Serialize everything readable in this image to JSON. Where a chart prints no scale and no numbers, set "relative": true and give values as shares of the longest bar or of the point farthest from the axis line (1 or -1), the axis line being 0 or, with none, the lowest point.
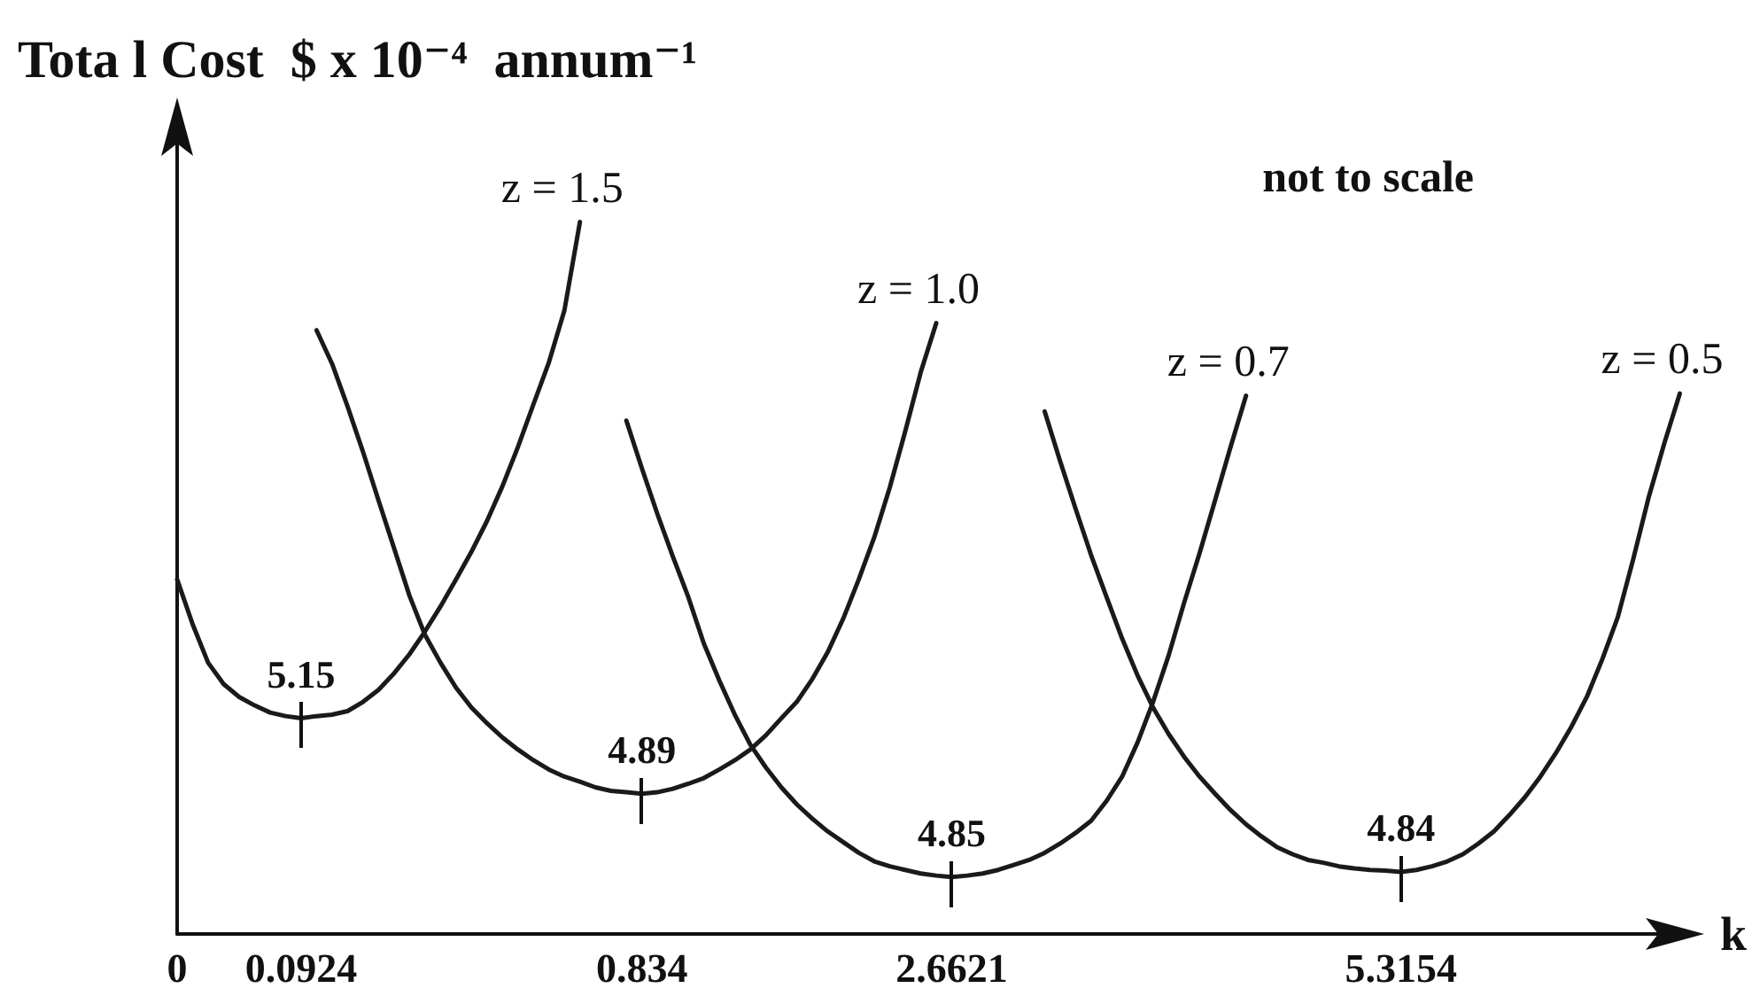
{
  "chart_data": {
    "type": "line",
    "relative": true,
    "ylabel": "Tota l Cost  $ x 10⁻⁴  annum⁻¹",
    "xlabel": "k",
    "grid": false,
    "marker": "none",
    "categories": [
      "0",
      null,
      null,
      null,
      null,
      null,
      null,
      null,
      "0.0924",
      null,
      null,
      null,
      null,
      null,
      null,
      null,
      null,
      null,
      null,
      null,
      null,
      null,
      null,
      null,
      null,
      null,
      null,
      null,
      null,
      null,
      "0.834",
      null,
      null,
      null,
      null,
      null,
      null,
      null,
      null,
      null,
      null,
      null,
      null,
      null,
      null,
      null,
      null,
      null,
      null,
      null,
      "2.6621",
      null,
      null,
      null,
      null,
      null,
      null,
      null,
      null,
      null,
      null,
      null,
      null,
      null,
      null,
      null,
      null,
      null,
      null,
      null,
      null,
      null,
      null,
      null,
      null,
      null,
      null,
      null,
      null,
      "5.3154",
      null,
      null,
      null,
      null,
      null,
      null,
      null,
      null,
      null,
      null,
      null,
      null,
      null,
      null,
      null,
      null,
      null,
      null,
      null
    ],
    "series": [
      {
        "name": "z = 1.5",
        "color": "#1a1a1a",
        "values": [
          0.498,
          0.435,
          0.381,
          0.351,
          0.333,
          0.321,
          0.311,
          0.306,
          0.303,
          0.306,
          0.308,
          0.313,
          0.326,
          0.343,
          0.366,
          0.393,
          0.425,
          0.46,
          0.498,
          0.537,
          0.58,
          0.629,
          0.684,
          0.744,
          0.803,
          0.876,
          1,
          null,
          null,
          null,
          null,
          null,
          null,
          null,
          null,
          null,
          null,
          null,
          null,
          null,
          null,
          null,
          null,
          null,
          null,
          null,
          null,
          null,
          null,
          null,
          null,
          null,
          null,
          null,
          null,
          null,
          null,
          null,
          null,
          null,
          null,
          null,
          null,
          null,
          null,
          null,
          null,
          null,
          null,
          null,
          null,
          null,
          null,
          null,
          null,
          null,
          null,
          null,
          null,
          null,
          null,
          null,
          null,
          null,
          null,
          null,
          null,
          null,
          null,
          null,
          null,
          null,
          null,
          null,
          null,
          null,
          null,
          null,
          null
        ]
      },
      {
        "name": "z = 1.0",
        "color": "#1a1a1a",
        "values": [
          null,
          null,
          null,
          null,
          null,
          null,
          null,
          null,
          null,
          0.848,
          0.801,
          0.741,
          0.677,
          0.609,
          0.542,
          0.475,
          0.42,
          0.381,
          0.346,
          0.318,
          0.296,
          0.276,
          0.259,
          0.244,
          0.231,
          0.221,
          0.214,
          0.206,
          0.201,
          0.199,
          0.197,
          0.199,
          0.204,
          0.211,
          0.219,
          0.231,
          0.244,
          0.259,
          0.279,
          0.303,
          0.326,
          0.358,
          0.396,
          0.443,
          0.498,
          0.557,
          0.627,
          0.706,
          0.789,
          0.858,
          null,
          null,
          null,
          null,
          null,
          null,
          null,
          null,
          null,
          null,
          null,
          null,
          null,
          null,
          null,
          null,
          null,
          null,
          null,
          null,
          null,
          null,
          null,
          null,
          null,
          null,
          null,
          null,
          null,
          null,
          null,
          null,
          null,
          null,
          null,
          null,
          null,
          null,
          null,
          null,
          null,
          null,
          null,
          null,
          null,
          null,
          null,
          null,
          null
        ]
      },
      {
        "name": "z = 0.7",
        "color": "#1a1a1a",
        "values": [
          null,
          null,
          null,
          null,
          null,
          null,
          null,
          null,
          null,
          null,
          null,
          null,
          null,
          null,
          null,
          null,
          null,
          null,
          null,
          null,
          null,
          null,
          null,
          null,
          null,
          null,
          null,
          null,
          null,
          0.721,
          0.654,
          0.59,
          0.53,
          0.473,
          0.408,
          0.356,
          0.308,
          0.266,
          0.234,
          0.206,
          0.182,
          0.162,
          0.144,
          0.129,
          0.114,
          0.102,
          0.095,
          0.09,
          0.085,
          0.082,
          0.08,
          0.082,
          0.085,
          0.09,
          0.097,
          0.104,
          0.114,
          0.127,
          0.142,
          0.159,
          0.187,
          0.221,
          0.269,
          0.326,
          0.391,
          0.465,
          0.535,
          0.609,
          0.684,
          0.756,
          null,
          null,
          null,
          null,
          null,
          null,
          null,
          null,
          null,
          null,
          null,
          null,
          null,
          null,
          null,
          null,
          null,
          null,
          null,
          null,
          null,
          null,
          null,
          null,
          null,
          null,
          null,
          null,
          null
        ]
      },
      {
        "name": "z = 0.5",
        "color": "#1a1a1a",
        "values": [
          null,
          null,
          null,
          null,
          null,
          null,
          null,
          null,
          null,
          null,
          null,
          null,
          null,
          null,
          null,
          null,
          null,
          null,
          null,
          null,
          null,
          null,
          null,
          null,
          null,
          null,
          null,
          null,
          null,
          null,
          null,
          null,
          null,
          null,
          null,
          null,
          null,
          null,
          null,
          null,
          null,
          null,
          null,
          null,
          null,
          null,
          null,
          null,
          null,
          null,
          null,
          null,
          null,
          null,
          null,
          null,
          0.734,
          0.664,
          0.597,
          0.532,
          0.473,
          0.415,
          0.363,
          0.318,
          0.281,
          0.249,
          0.221,
          0.197,
          0.174,
          0.154,
          0.137,
          0.122,
          0.112,
          0.104,
          0.1,
          0.095,
          0.092,
          0.09,
          0.089,
          0.087,
          0.09,
          0.095,
          0.102,
          0.112,
          0.127,
          0.144,
          0.167,
          0.192,
          0.221,
          0.254,
          0.291,
          0.333,
          0.386,
          0.445,
          0.527,
          0.614,
          0.689,
          0.759,
          null
        ]
      }
    ],
    "annotations": [
      "not to scale",
      {
        "text": "5.15",
        "x": "0.0924",
        "y": 0.303
      },
      {
        "text": "4.89",
        "x": "0.834",
        "y": 0.197
      },
      {
        "text": "4.85",
        "x": "2.6621",
        "y": 0.08
      },
      {
        "text": "4.84",
        "x": "5.3154",
        "y": 0.087
      }
    ]
  }
}
